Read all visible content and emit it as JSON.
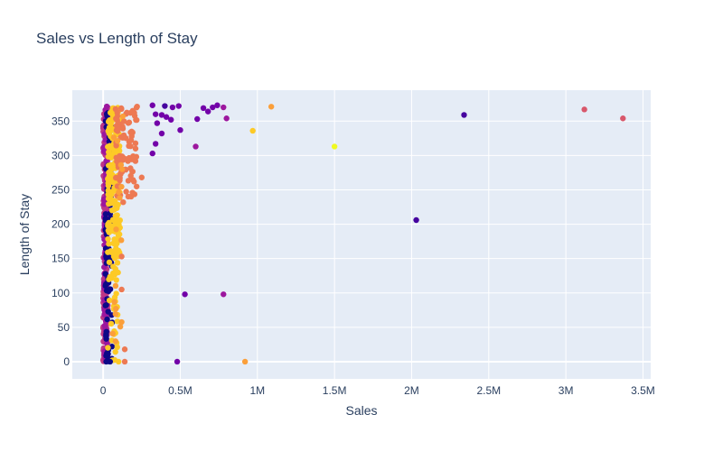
{
  "chart_data": {
    "type": "scatter",
    "title": "Sales vs Length of Stay",
    "xlabel": "Sales",
    "ylabel": "Length of Stay",
    "xlim": [
      -200000,
      3550000
    ],
    "ylim": [
      -25,
      395
    ],
    "xticks": [
      {
        "v": 0,
        "label": "0"
      },
      {
        "v": 500000,
        "label": "0.5M"
      },
      {
        "v": 1000000,
        "label": "1M"
      },
      {
        "v": 1500000,
        "label": "1.5M"
      },
      {
        "v": 2000000,
        "label": "2M"
      },
      {
        "v": 2500000,
        "label": "2.5M"
      },
      {
        "v": 3000000,
        "label": "3M"
      },
      {
        "v": 3500000,
        "label": "3.5M"
      }
    ],
    "yticks": [
      {
        "v": 0,
        "label": "0"
      },
      {
        "v": 50,
        "label": "50"
      },
      {
        "v": 100,
        "label": "100"
      },
      {
        "v": 150,
        "label": "150"
      },
      {
        "v": 200,
        "label": "200"
      },
      {
        "v": 250,
        "label": "250"
      },
      {
        "v": 300,
        "label": "300"
      },
      {
        "v": 350,
        "label": "350"
      }
    ],
    "grid": true,
    "legend": "none",
    "plot_bg": "#e5ecf6",
    "palette": [
      "#0d0887",
      "#46039f",
      "#7201a8",
      "#9c179e",
      "#bd3786",
      "#d8576b",
      "#ed7953",
      "#fb9f3a",
      "#fdca26",
      "#f0f921"
    ],
    "clusters": [
      {
        "x_range": [
          0,
          30000
        ],
        "y_range": [
          0,
          372
        ],
        "n": 260,
        "color": "#bd3786"
      },
      {
        "x_range": [
          5000,
          25000
        ],
        "y_range": [
          0,
          372
        ],
        "n": 90,
        "color": "#9c179e"
      },
      {
        "x_range": [
          15000,
          60000
        ],
        "y_range": [
          0,
          372
        ],
        "n": 90,
        "color": "#0d0887"
      },
      {
        "x_range": [
          30000,
          110000
        ],
        "y_range": [
          150,
          372
        ],
        "n": 170,
        "color": "#fdca26"
      },
      {
        "x_range": [
          30000,
          100000
        ],
        "y_range": [
          0,
          150
        ],
        "n": 30,
        "color": "#fdca26"
      },
      {
        "x_range": [
          80000,
          220000
        ],
        "y_range": [
          240,
          372
        ],
        "n": 90,
        "color": "#ed7953"
      },
      {
        "x_range": [
          60000,
          130000
        ],
        "y_range": [
          0,
          372
        ],
        "n": 18,
        "color": "#fb9f3a"
      }
    ],
    "points": [
      {
        "x": 2340000,
        "y": 359,
        "color": "#46039f"
      },
      {
        "x": 2030000,
        "y": 206,
        "color": "#46039f"
      },
      {
        "x": 3120000,
        "y": 367,
        "color": "#d8576b"
      },
      {
        "x": 3370000,
        "y": 354,
        "color": "#d8576b"
      },
      {
        "x": 1500000,
        "y": 313,
        "color": "#f0f921"
      },
      {
        "x": 1090000,
        "y": 371,
        "color": "#fb9f3a"
      },
      {
        "x": 970000,
        "y": 336,
        "color": "#fdca26"
      },
      {
        "x": 920000,
        "y": 0,
        "color": "#fb9f3a"
      },
      {
        "x": 780000,
        "y": 98,
        "color": "#9c179e"
      },
      {
        "x": 530000,
        "y": 98,
        "color": "#7201a8"
      },
      {
        "x": 480000,
        "y": 0,
        "color": "#7201a8"
      },
      {
        "x": 800000,
        "y": 354,
        "color": "#9c179e"
      },
      {
        "x": 780000,
        "y": 370,
        "color": "#9c179e"
      },
      {
        "x": 740000,
        "y": 373,
        "color": "#7201a8"
      },
      {
        "x": 710000,
        "y": 370,
        "color": "#7201a8"
      },
      {
        "x": 680000,
        "y": 364,
        "color": "#7201a8"
      },
      {
        "x": 650000,
        "y": 369,
        "color": "#7201a8"
      },
      {
        "x": 610000,
        "y": 353,
        "color": "#7201a8"
      },
      {
        "x": 600000,
        "y": 313,
        "color": "#9c179e"
      },
      {
        "x": 500000,
        "y": 337,
        "color": "#7201a8"
      },
      {
        "x": 490000,
        "y": 372,
        "color": "#7201a8"
      },
      {
        "x": 450000,
        "y": 370,
        "color": "#7201a8"
      },
      {
        "x": 440000,
        "y": 352,
        "color": "#7201a8"
      },
      {
        "x": 410000,
        "y": 356,
        "color": "#7201a8"
      },
      {
        "x": 400000,
        "y": 372,
        "color": "#46039f"
      },
      {
        "x": 380000,
        "y": 359,
        "color": "#7201a8"
      },
      {
        "x": 380000,
        "y": 332,
        "color": "#7201a8"
      },
      {
        "x": 350000,
        "y": 347,
        "color": "#7201a8"
      },
      {
        "x": 340000,
        "y": 360,
        "color": "#7201a8"
      },
      {
        "x": 340000,
        "y": 317,
        "color": "#7201a8"
      },
      {
        "x": 320000,
        "y": 303,
        "color": "#7201a8"
      },
      {
        "x": 320000,
        "y": 373,
        "color": "#7201a8"
      },
      {
        "x": 250000,
        "y": 268,
        "color": "#ed7953"
      },
      {
        "x": 210000,
        "y": 310,
        "color": "#ed7953"
      },
      {
        "x": 200000,
        "y": 262,
        "color": "#ed7953"
      },
      {
        "x": 190000,
        "y": 246,
        "color": "#ed7953"
      },
      {
        "x": 140000,
        "y": 18,
        "color": "#ed7953"
      },
      {
        "x": 140000,
        "y": 0,
        "color": "#ed7953"
      },
      {
        "x": 120000,
        "y": 105,
        "color": "#ed7953"
      },
      {
        "x": 120000,
        "y": 153,
        "color": "#ed7953"
      },
      {
        "x": 130000,
        "y": 232,
        "color": "#ed7953"
      },
      {
        "x": 100000,
        "y": 0,
        "color": "#fdca26"
      },
      {
        "x": 85000,
        "y": 99,
        "color": "#fdca26"
      },
      {
        "x": 80000,
        "y": 135,
        "color": "#fdca26"
      },
      {
        "x": 60000,
        "y": 2,
        "color": "#fdca26"
      },
      {
        "x": 20000,
        "y": 0,
        "color": "#0d0887"
      },
      {
        "x": 45000,
        "y": 0,
        "color": "#0d0887"
      }
    ]
  }
}
